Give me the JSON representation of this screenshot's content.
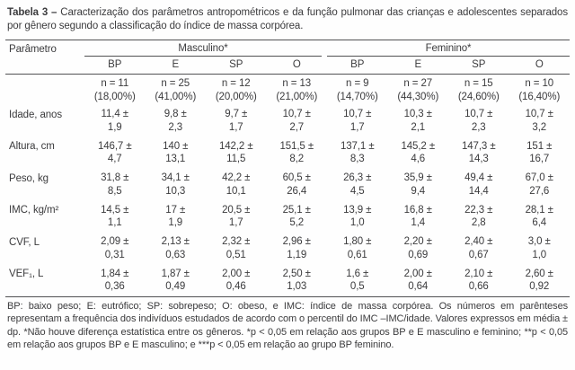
{
  "colors": {
    "ink": "#3b3b3d",
    "rule": "#515153",
    "paper": "#fefefe"
  },
  "title": {
    "tag": "Tabela 3 –",
    "text": "Caracterização dos parâmetros antropométricos e da função pulmonar das crianças e adolescentes separados por gênero segundo a classificação do índice de massa corpórea."
  },
  "table": {
    "param_header": "Parâmetro",
    "group_headers": [
      "Masculino*",
      "Feminino*"
    ],
    "sub_headers": [
      "BP",
      "E",
      "SP",
      "O",
      "BP",
      "E",
      "SP",
      "O"
    ],
    "n_row": [
      "n = 11\n(18,00%)",
      "n = 25\n(41,00%)",
      "n = 12\n(20,00%)",
      "n = 13\n(21,00%)",
      "n = 9\n(14,70%)",
      "n = 27\n(44,30%)",
      "n = 15\n(24,60%)",
      "n = 10\n(16,40%)"
    ],
    "rows": [
      {
        "label": "Idade, anos",
        "cells": [
          "11,4 ±\n1,9",
          "9,8 ±\n2,3",
          "9,7 ±\n1,7",
          "10,7 ±\n2,7",
          "10,7 ±\n1,7",
          "10,3 ±\n2,1",
          "10,7 ±\n2,3",
          "10,7 ±\n3,2"
        ]
      },
      {
        "label": "Altura, cm",
        "cells": [
          "146,7 ±\n4,7",
          "140 ±\n13,1",
          "142,2 ±\n11,5",
          "151,5 ±\n8,2",
          "137,1 ±\n8,3",
          "145,2 ±\n4,6",
          "147,3 ±\n14,3",
          "151 ±\n16,7"
        ]
      },
      {
        "label": "Peso, kg",
        "cells": [
          "31,8 ±\n8,5",
          "34,1 ±\n10,3",
          "42,2 ±\n10,1",
          "60,5 ±\n26,4",
          "26,3 ±\n4,5",
          "35,9 ±\n9,4",
          "49,4 ±\n14,4",
          "67,0 ±\n27,6"
        ]
      },
      {
        "label": "IMC, kg/m²",
        "cells": [
          "14,5 ±\n1,1",
          "17 ±\n1,9",
          "20,5 ±\n1,7",
          "25,1 ±\n5,2",
          "13,9 ±\n1,0",
          "16,8 ±\n1,4",
          "22,3 ±\n2,8",
          "28,1 ±\n6,4"
        ]
      },
      {
        "label": "CVF, L",
        "cells": [
          "2,09 ±\n0,31",
          "2,13 ±\n0,63",
          "2,32 ±\n0,51",
          "2,96 ±\n1,19",
          "1,80 ±\n0,61",
          "2,20 ±\n0,69",
          "2,40 ±\n0,67",
          "3,0 ±\n1,0"
        ]
      },
      {
        "label": "VEF₁, L",
        "cells": [
          "1,84 ±\n0,36",
          "1,87 ±\n0,49",
          "2,00 ±\n0,46",
          "2,50 ±\n1,03",
          "1,6 ±\n0,5",
          "2,00 ±\n0,64",
          "2,10 ±\n0,66",
          "2,60 ±\n0,92"
        ]
      }
    ]
  },
  "footnote": "BP: baixo peso; E: eutrófico; SP: sobrepeso; O: obeso, e IMC: índice de massa corpórea. Os números em parênteses representam a frequência dos indivíduos estudados de acordo com o percentil do IMC –IMC/idade. Valores expressos em média ± dp. *Não houve diferença estatística entre os gêneros. *p < 0,05 em relação aos grupos BP e E masculino e feminino; **p < 0,05 em relação aos grupos BP e E masculino; e ***p < 0,05 em relação ao grupo BP feminino."
}
